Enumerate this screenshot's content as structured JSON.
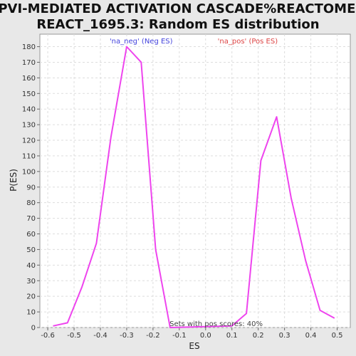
{
  "chart_data": {
    "type": "line",
    "title_lines": [
      "GPVI-MEDIATED ACTIVATION CASCADE%REACTOME%",
      "REACT_1695.3: Random ES distribution"
    ],
    "xlabel": "ES",
    "ylabel": "P(ES)",
    "xlim": [
      -0.63,
      0.55
    ],
    "ylim": [
      0,
      188
    ],
    "x_ticks": [
      -0.6,
      -0.5,
      -0.4,
      -0.3,
      -0.2,
      -0.1,
      0.0,
      0.1,
      0.2,
      0.3,
      0.4,
      0.5
    ],
    "x_tick_labels": [
      "-0.6",
      "-0.5",
      "-0.4",
      "-0.3",
      "-0.2",
      "-0.1",
      "0.0",
      "0.1",
      "0.2",
      "0.3",
      "0.4",
      "0.5"
    ],
    "y_ticks": [
      0,
      10,
      20,
      30,
      40,
      50,
      60,
      70,
      80,
      90,
      100,
      110,
      120,
      130,
      140,
      150,
      160,
      170,
      180
    ],
    "y_tick_labels": [
      "0",
      "10",
      "20",
      "30",
      "40",
      "50",
      "60",
      "70",
      "80",
      "90",
      "100",
      "110",
      "120",
      "130",
      "140",
      "150",
      "160",
      "170",
      "180"
    ],
    "grid": true,
    "series": [
      {
        "color": "#ee44ee",
        "x": [
          -0.58,
          -0.525,
          -0.47,
          -0.415,
          -0.36,
          -0.3,
          -0.245,
          -0.19,
          -0.135,
          0.1,
          0.155,
          0.21,
          0.27,
          0.325,
          0.38,
          0.435,
          0.49
        ],
        "y": [
          1,
          3,
          26,
          54,
          122,
          180,
          170,
          50,
          0,
          1,
          9,
          107,
          135,
          83,
          43,
          11,
          6
        ]
      }
    ],
    "legend": [
      {
        "text": "'na_neg' (Neg ES)",
        "color": "#4444dd",
        "at_x": -0.245
      },
      {
        "text": "'na_pos' (Pos ES)",
        "color": "#dd4444",
        "at_x": 0.16
      }
    ],
    "annotation": {
      "text": "Sets with pos scores: 40%",
      "at_x": 0.04,
      "at_y": 1
    }
  }
}
